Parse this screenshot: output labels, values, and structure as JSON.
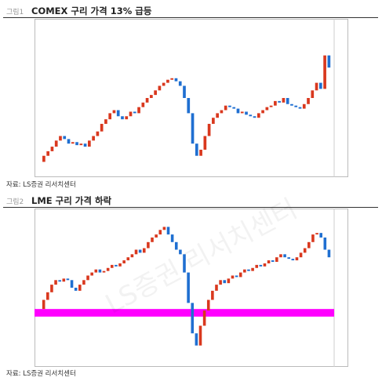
{
  "figures": [
    {
      "label": "그림1",
      "title": "COMEX 구리 가격 13% 급등",
      "source": "자료: LS증권 리서치센터",
      "chart": {
        "type": "candlestick",
        "ylim": [
          0,
          100
        ],
        "up_color": "#d9381e",
        "down_color": "#1f6fd1",
        "closes": [
          8,
          12,
          15,
          18,
          22,
          25,
          23,
          20,
          21,
          19,
          20,
          18,
          22,
          25,
          28,
          33,
          36,
          40,
          42,
          38,
          36,
          38,
          41,
          40,
          44,
          47,
          50,
          52,
          55,
          58,
          60,
          62,
          63,
          61,
          58,
          50,
          40,
          20,
          12,
          16,
          25,
          33,
          37,
          40,
          42,
          45,
          44,
          43,
          40,
          41,
          39,
          38,
          37,
          40,
          42,
          44,
          45,
          48,
          47,
          50,
          46,
          45,
          44,
          43,
          46,
          50,
          55,
          60,
          56,
          78,
          70
        ]
      }
    },
    {
      "label": "그림2",
      "title": "LME 구리 가격 하락",
      "source": "자료: LS증권 리서치센터",
      "watermark": "LS증권 리서치센터",
      "chart": {
        "type": "candlestick",
        "ylim": [
          0,
          100
        ],
        "up_color": "#d9381e",
        "down_color": "#1f6fd1",
        "highlight": {
          "range": [
            31,
            36
          ],
          "color": "#ff00ff"
        },
        "closes": [
          36,
          42,
          47,
          52,
          55,
          54,
          56,
          55,
          50,
          48,
          52,
          55,
          58,
          60,
          62,
          60,
          61,
          63,
          65,
          64,
          66,
          68,
          70,
          72,
          75,
          73,
          76,
          80,
          83,
          85,
          88,
          90,
          85,
          80,
          75,
          72,
          60,
          40,
          20,
          12,
          25,
          35,
          42,
          48,
          52,
          55,
          53,
          56,
          58,
          57,
          60,
          62,
          61,
          63,
          65,
          64,
          66,
          68,
          67,
          70,
          72,
          70,
          69,
          68,
          70,
          73,
          76,
          80,
          85,
          86,
          83,
          75,
          70
        ]
      }
    }
  ]
}
